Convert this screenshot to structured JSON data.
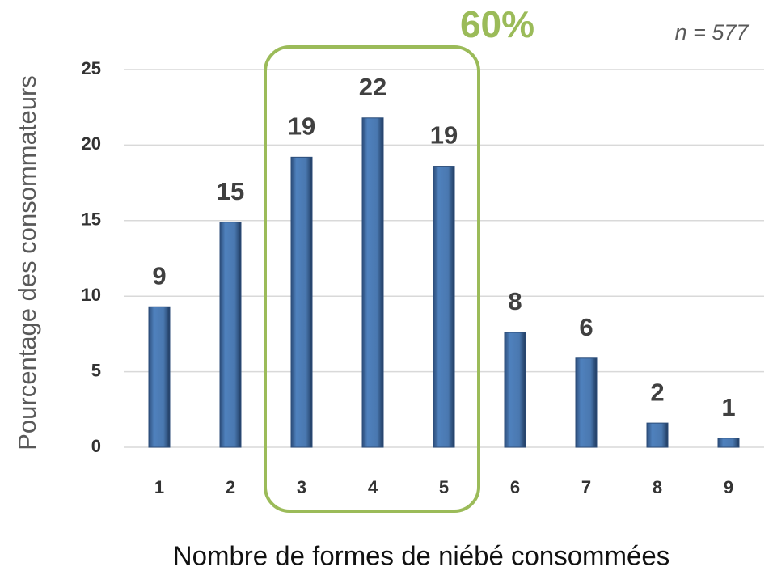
{
  "chart_data": {
    "type": "bar",
    "x_label": "Nombre de formes de niébé consommées",
    "y_label": "Pourcentage des consommateurs",
    "annotations": [
      "60%",
      "n = 577"
    ],
    "categories": [
      "1",
      "2",
      "3",
      "4",
      "5",
      "6",
      "7",
      "8",
      "9"
    ],
    "values": [
      9.3,
      14.9,
      19.2,
      21.8,
      18.6,
      7.6,
      5.9,
      1.6,
      0.6
    ],
    "value_labels": [
      "9",
      "15",
      "19",
      "22",
      "19",
      "8",
      "6",
      "2",
      "1"
    ],
    "color": "#4f81bd",
    "ylim": [
      0,
      25
    ],
    "yticks": [
      0,
      5,
      10,
      15,
      20,
      25
    ],
    "grid": true
  }
}
